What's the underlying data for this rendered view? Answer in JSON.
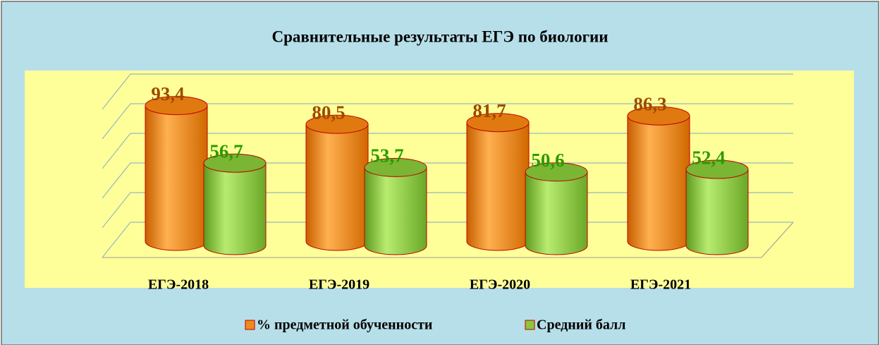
{
  "chart_data": {
    "type": "bar3d",
    "title": "Сравнительные результаты ЕГЭ по биологии",
    "categories": [
      "ЕГЭ-2018",
      "ЕГЭ-2019",
      "ЕГЭ-2020",
      "ЕГЭ-2021"
    ],
    "series": [
      {
        "name": "% предметной обученности",
        "color": "#f08a1c",
        "label_color": "#9c4a00",
        "values": [
          93.4,
          80.5,
          81.7,
          86.3
        ],
        "value_labels": [
          "93,4",
          "80,5",
          "81,7",
          "86,3"
        ]
      },
      {
        "name": "Средний балл",
        "color": "#8cc63e",
        "label_color": "#2a9a00",
        "values": [
          56.7,
          53.7,
          50.6,
          52.4
        ],
        "value_labels": [
          "56,7",
          "53,7",
          "50,6",
          "52,4"
        ]
      }
    ],
    "ylim": [
      0,
      100
    ],
    "yticks": [
      0,
      20,
      40,
      60,
      80,
      100
    ],
    "grid": true,
    "legend": "bottom"
  }
}
